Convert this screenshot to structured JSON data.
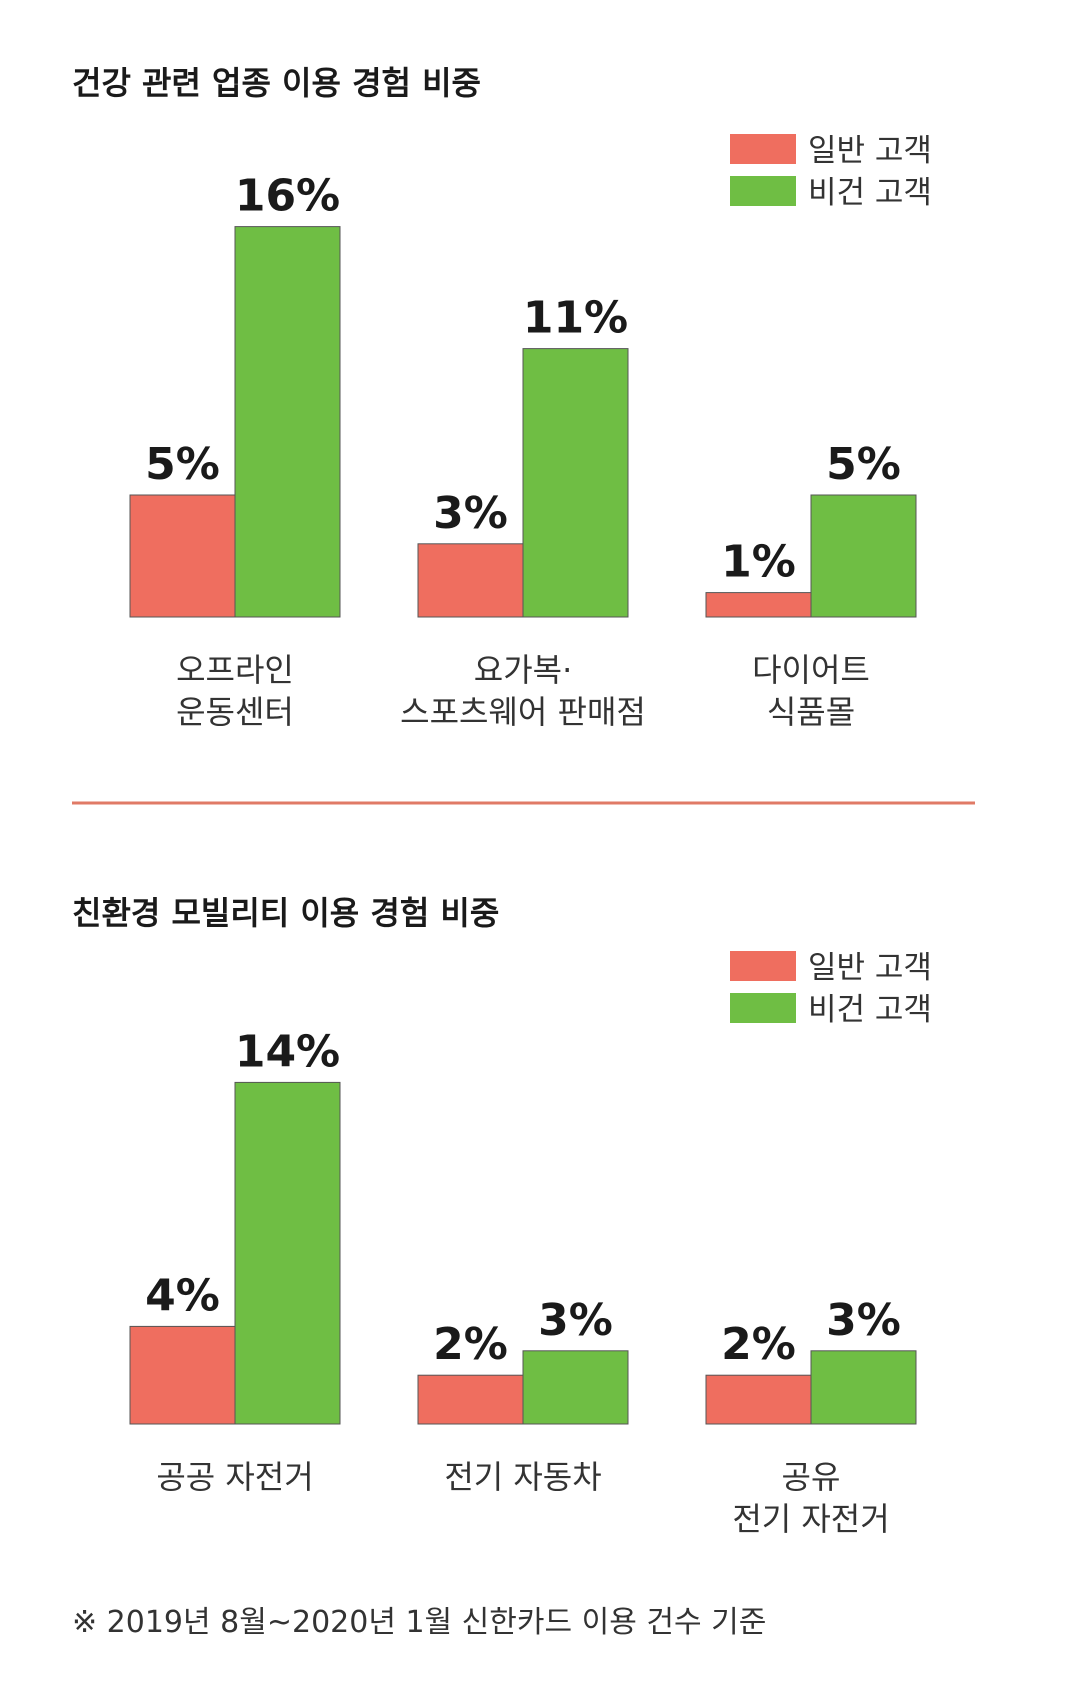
{
  "colors": {
    "general": "#ef6e5f",
    "vegan": "#6fbe44",
    "divider": "#e07a66",
    "bar_stroke": "#555555"
  },
  "legend": {
    "general": "일반 고객",
    "vegan": "비건 고객"
  },
  "chart_data": [
    {
      "type": "bar",
      "title": "건강 관련 업종 이용 경험 비중",
      "categories": [
        [
          "오프라인",
          "운동센터"
        ],
        [
          "요가복·",
          "스포츠웨어 판매점"
        ],
        [
          "다이어트",
          "식품몰"
        ]
      ],
      "series": [
        {
          "name": "일반 고객",
          "values": [
            5,
            3,
            1
          ]
        },
        {
          "name": "비건 고객",
          "values": [
            16,
            11,
            5
          ]
        }
      ],
      "value_labels": [
        [
          "5%",
          "3%",
          "1%"
        ],
        [
          "16%",
          "11%",
          "5%"
        ]
      ],
      "unit": "%",
      "legend_position": "top-right"
    },
    {
      "type": "bar",
      "title": "친환경 모빌리티 이용 경험 비중",
      "categories": [
        [
          "공공 자전거"
        ],
        [
          "전기 자동차"
        ],
        [
          "공유",
          "전기 자전거"
        ]
      ],
      "series": [
        {
          "name": "일반 고객",
          "values": [
            4,
            2,
            2
          ]
        },
        {
          "name": "비건 고객",
          "values": [
            14,
            3,
            3
          ]
        }
      ],
      "value_labels": [
        [
          "4%",
          "2%",
          "2%"
        ],
        [
          "14%",
          "3%",
          "3%"
        ]
      ],
      "unit": "%",
      "legend_position": "top-right"
    }
  ],
  "footnote": "※ 2019년 8월~2020년 1월 신한카드 이용 건수 기준"
}
